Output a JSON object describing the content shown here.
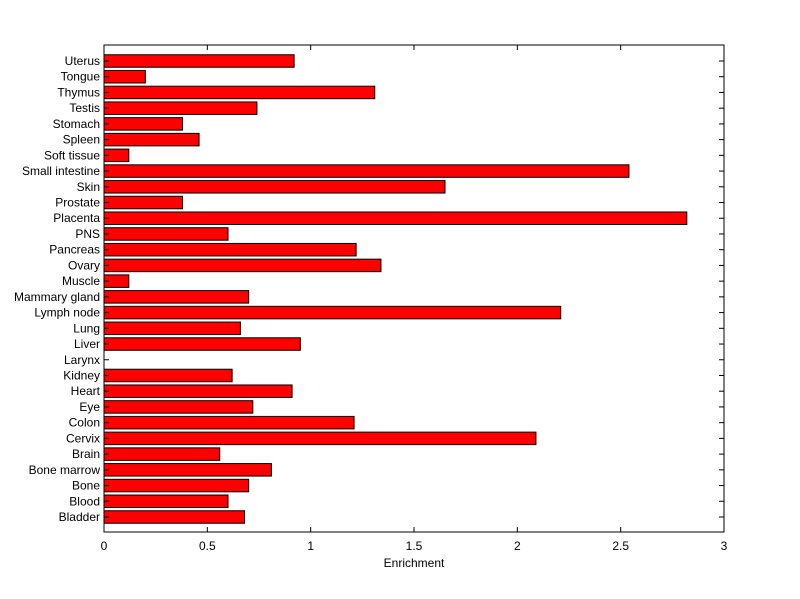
{
  "chart_data": {
    "type": "bar",
    "orientation": "horizontal",
    "categories": [
      "Uterus",
      "Tongue",
      "Thymus",
      "Testis",
      "Stomach",
      "Spleen",
      "Soft tissue",
      "Small intestine",
      "Skin",
      "Prostate",
      "Placenta",
      "PNS",
      "Pancreas",
      "Ovary",
      "Muscle",
      "Mammary gland",
      "Lymph node",
      "Lung",
      "Liver",
      "Larynx",
      "Kidney",
      "Heart",
      "Eye",
      "Colon",
      "Cervix",
      "Brain",
      "Bone marrow",
      "Bone",
      "Blood",
      "Bladder"
    ],
    "values": [
      0.92,
      0.2,
      1.31,
      0.74,
      0.38,
      0.46,
      0.12,
      2.54,
      1.65,
      0.38,
      2.82,
      0.6,
      1.22,
      1.34,
      0.12,
      0.7,
      2.21,
      0.66,
      0.95,
      0.0,
      0.62,
      0.91,
      0.72,
      1.21,
      2.09,
      0.56,
      0.81,
      0.7,
      0.6,
      0.68
    ],
    "title": "",
    "xlabel": "Enrichment",
    "ylabel": "",
    "xlim": [
      0,
      3
    ],
    "xticks": [
      0,
      0.5,
      1,
      1.5,
      2,
      2.5,
      3
    ],
    "xtick_labels": [
      "0",
      "0.5",
      "1",
      "1.5",
      "2",
      "2.5",
      "3"
    ],
    "grid": false,
    "legend": "none",
    "bar_color": "#ff0000",
    "bar_edge_color": "#000000"
  }
}
